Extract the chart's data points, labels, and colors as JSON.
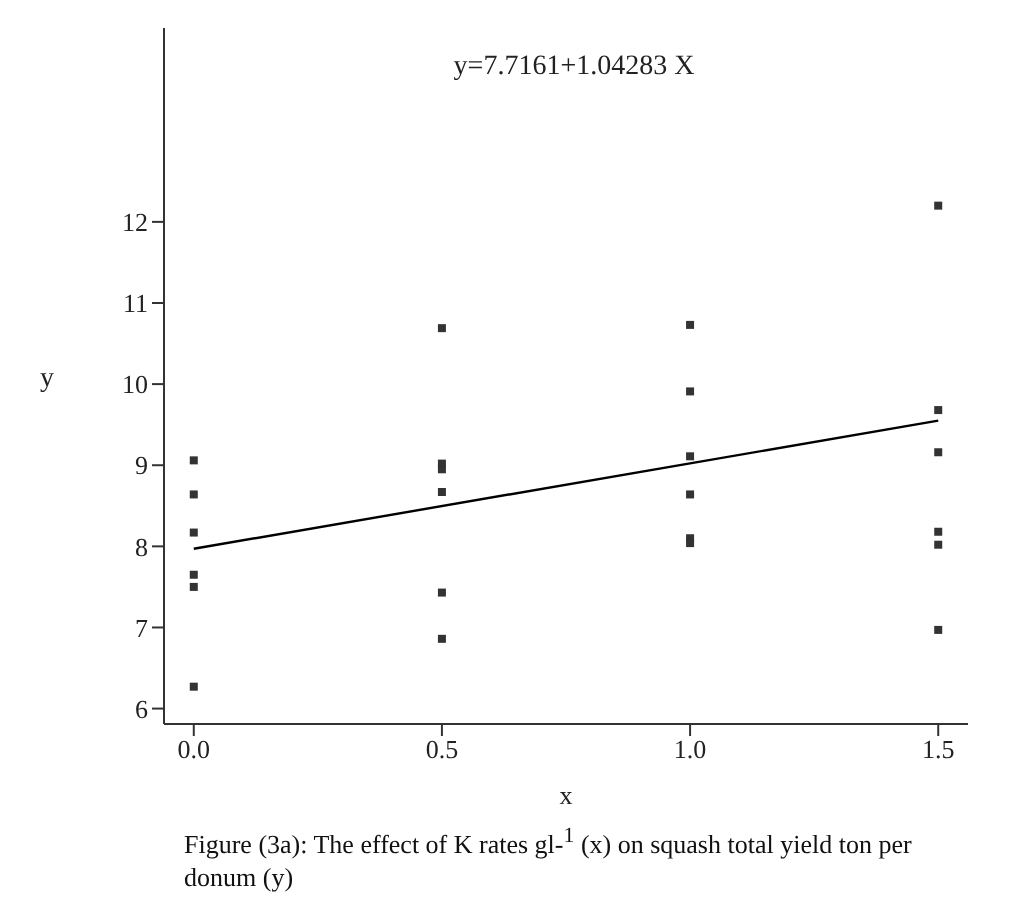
{
  "chart_data": {
    "type": "scatter",
    "xlabel": "x",
    "ylabel": "y",
    "annotations": [
      "y=7.7161+1.04283 X",
      "Figure (3a): The effect of K rates gl-$^{1}$ (x) on squash total yield ton per donum (y)"
    ],
    "x": [
      0,
      0,
      0,
      0,
      0,
      0,
      0.5,
      0.5,
      0.5,
      0.5,
      0.5,
      0.5,
      1,
      1,
      1,
      1,
      1,
      1,
      1.5,
      1.5,
      1.5,
      1.5,
      1.5,
      1.5
    ],
    "series": [
      {
        "color": "#333333",
        "marker": "square",
        "values": [
          9.06,
          8.64,
          8.17,
          7.65,
          7.5,
          6.27,
          10.69,
          9.02,
          8.95,
          8.67,
          7.43,
          6.86,
          10.73,
          9.91,
          9.11,
          8.64,
          8.1,
          8.04,
          12.2,
          9.68,
          9.16,
          8.18,
          8.02,
          6.97
        ]
      },
      {
        "type": "line",
        "color": "#000000",
        "x": [
          0,
          1.5
        ],
        "values": [
          7.97,
          9.55
        ]
      }
    ],
    "xlim": [
      -0.06,
      1.56
    ],
    "ylim": [
      5.81,
      14.39
    ],
    "xticks": [
      {
        "value": 0,
        "label": "0.0"
      },
      {
        "value": 0.5,
        "label": "0.5"
      },
      {
        "value": 1,
        "label": "1.0"
      },
      {
        "value": 1.5,
        "label": "1.5"
      }
    ],
    "yticks": [
      6,
      7,
      8,
      9,
      10,
      11,
      12
    ],
    "grid": false
  }
}
